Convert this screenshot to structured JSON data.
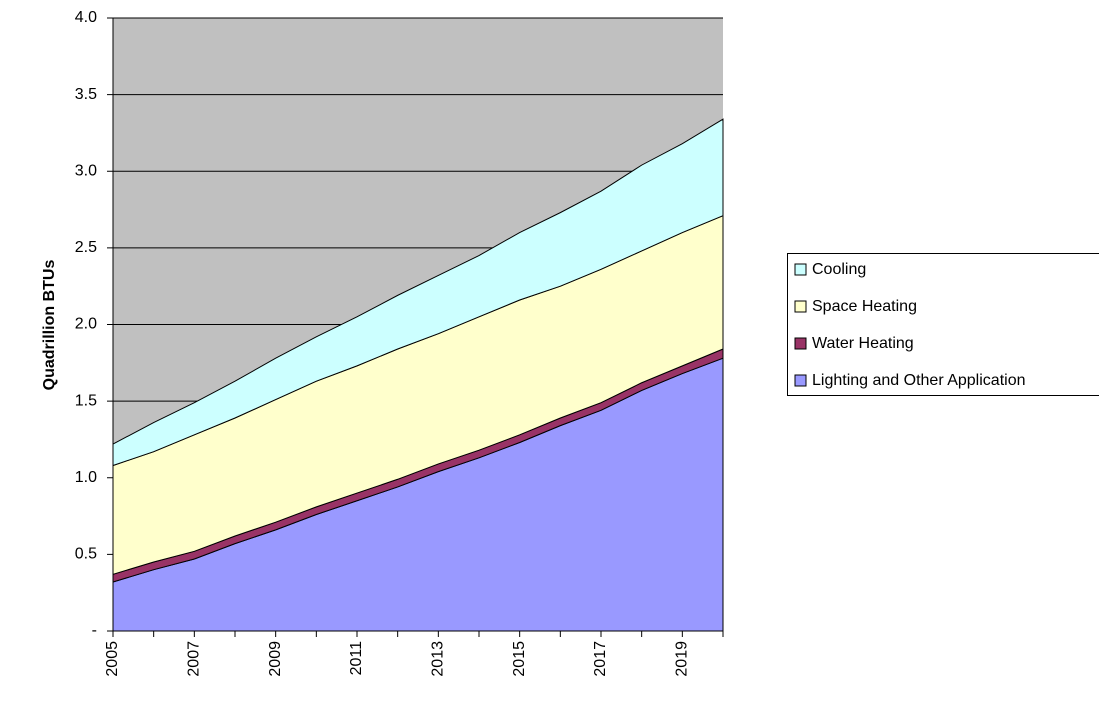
{
  "chart_data": {
    "type": "stacked_area",
    "y_label": "Quadrillion BTUs",
    "categories": [
      "2005",
      null,
      "2007",
      null,
      "2009",
      null,
      "2011",
      null,
      "2013",
      null,
      "2015",
      null,
      "2017",
      null,
      "2019",
      null
    ],
    "series": [
      {
        "name": "Lighting and Other Application",
        "color": "#9999ff",
        "values": [
          0.32,
          0.4,
          0.47,
          0.57,
          0.66,
          0.76,
          0.85,
          0.94,
          1.04,
          1.13,
          1.23,
          1.34,
          1.44,
          1.57,
          1.68,
          1.78
        ]
      },
      {
        "name": "Water Heating",
        "color": "#993366",
        "values": [
          0.05,
          0.05,
          0.05,
          0.05,
          0.05,
          0.05,
          0.05,
          0.05,
          0.05,
          0.05,
          0.05,
          0.05,
          0.05,
          0.05,
          0.05,
          0.06
        ]
      },
      {
        "name": "Space Heating",
        "color": "#ffffcc",
        "values": [
          0.71,
          0.72,
          0.76,
          0.77,
          0.8,
          0.82,
          0.83,
          0.85,
          0.85,
          0.87,
          0.88,
          0.86,
          0.87,
          0.86,
          0.87,
          0.87
        ]
      },
      {
        "name": "Cooling",
        "color": "#ccffff",
        "values": [
          0.14,
          0.19,
          0.21,
          0.24,
          0.27,
          0.29,
          0.32,
          0.35,
          0.38,
          0.4,
          0.44,
          0.48,
          0.51,
          0.56,
          0.58,
          0.63
        ]
      }
    ],
    "ylim": [
      0,
      4
    ],
    "yticks": [
      {
        "value": 0,
        "label": "-"
      },
      0.5,
      {
        "value": 1,
        "label": "1.0"
      },
      1.5,
      {
        "value": 2,
        "label": "2.0"
      },
      2.5,
      {
        "value": 3,
        "label": "3.0"
      },
      3.5,
      {
        "value": 4,
        "label": "4.0"
      }
    ],
    "grid": true,
    "plot_background": "#c0c0c0",
    "legend": "right"
  }
}
